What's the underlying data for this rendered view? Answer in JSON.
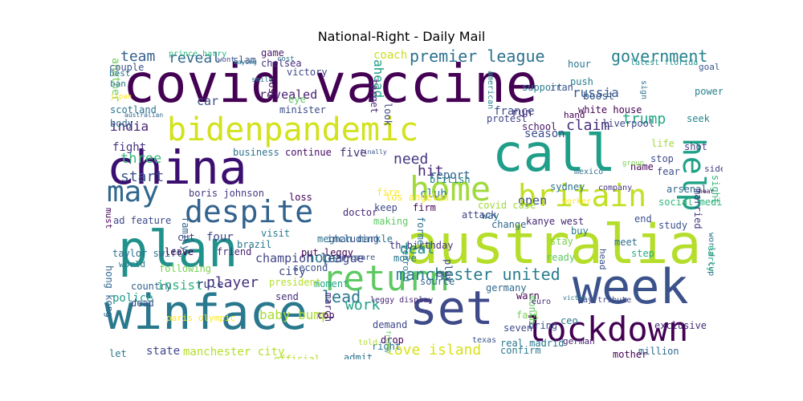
{
  "title": "National-Right - Daily Mail",
  "words": [
    {
      "text": "covid vaccine",
      "color": "#440154"
    },
    {
      "text": "china",
      "color": "#3b0f70"
    },
    {
      "text": "winface",
      "color": "#2a788e"
    },
    {
      "text": "plan",
      "color": "#21918c"
    },
    {
      "text": "australia",
      "color": "#b5de2b"
    },
    {
      "text": "set",
      "color": "#3e4a89"
    },
    {
      "text": "week",
      "color": "#3b528b"
    },
    {
      "text": "call",
      "color": "#1f9e89"
    },
    {
      "text": "bidenpandemic",
      "color": "#d2e21b"
    },
    {
      "text": "home",
      "color": "#a0da39"
    },
    {
      "text": "britain",
      "color": "#c2df23"
    },
    {
      "text": "despite",
      "color": "#33638d"
    },
    {
      "text": "may",
      "color": "#30678d"
    },
    {
      "text": "lockdown",
      "color": "#440154"
    },
    {
      "text": "return",
      "color": "#5ec962"
    },
    {
      "text": "help",
      "color": "#1fa187"
    },
    {
      "text": "manchester united",
      "color": "#287d8e"
    },
    {
      "text": "premier league",
      "color": "#2c728e"
    },
    {
      "text": "government",
      "color": "#26828e"
    },
    {
      "text": "reveal",
      "color": "#31688e"
    },
    {
      "text": "team",
      "color": "#355f8d"
    },
    {
      "text": "india",
      "color": "#482475"
    },
    {
      "text": "claim",
      "color": "#472d7b"
    },
    {
      "text": "trump",
      "color": "#22a884"
    },
    {
      "text": "three",
      "color": "#35b779"
    },
    {
      "text": "start",
      "color": "#3b528b"
    },
    {
      "text": "need",
      "color": "#453781"
    },
    {
      "text": "hit",
      "color": "#482878"
    },
    {
      "text": "player",
      "color": "#46327e"
    },
    {
      "text": "hope",
      "color": "#287c8e"
    },
    {
      "text": "lead",
      "color": "#2a768e"
    },
    {
      "text": "work",
      "color": "#20a386"
    },
    {
      "text": "love island",
      "color": "#d8e219"
    },
    {
      "text": "deal",
      "color": "#21908d"
    },
    {
      "text": "champion league",
      "color": "#414487"
    },
    {
      "text": "four",
      "color": "#404688"
    },
    {
      "text": "boris johnson",
      "color": "#443983"
    },
    {
      "text": "fight",
      "color": "#46337f"
    },
    {
      "text": "insist",
      "color": "#2db27d"
    },
    {
      "text": "rule",
      "color": "#404387"
    },
    {
      "text": "police",
      "color": "#1e9b8a"
    },
    {
      "text": "paris olympic",
      "color": "#fde725"
    },
    {
      "text": "baby bump",
      "color": "#a8db34"
    },
    {
      "text": "city",
      "color": "#3f4889"
    },
    {
      "text": "revealed",
      "color": "#482071"
    },
    {
      "text": "minister",
      "color": "#3d4d8a"
    },
    {
      "text": "business",
      "color": "#2c738e"
    },
    {
      "text": "continue",
      "color": "#440a68"
    },
    {
      "text": "five",
      "color": "#472f7d"
    },
    {
      "text": "club",
      "color": "#2a788e"
    },
    {
      "text": "report",
      "color": "#34618d"
    },
    {
      "text": "open",
      "color": "#3c4f8a"
    },
    {
      "text": "british",
      "color": "#25838e"
    },
    {
      "text": "season",
      "color": "#3e4c8a"
    },
    {
      "text": "school",
      "color": "#471164"
    },
    {
      "text": "run",
      "color": "#482173"
    },
    {
      "text": "russia",
      "color": "#365c8d"
    },
    {
      "text": "boost",
      "color": "#39568c"
    },
    {
      "text": "ahead",
      "color": "#1f9f88"
    },
    {
      "text": "coach",
      "color": "#c8e020"
    },
    {
      "text": "game",
      "color": "#481a6c"
    },
    {
      "text": "chelsea",
      "color": "#46307e"
    },
    {
      "text": "slam",
      "color": "#3a548c"
    },
    {
      "text": "wont",
      "color": "#3f4788"
    },
    {
      "text": "prince harry",
      "color": "#2fb47c"
    },
    {
      "text": "another",
      "color": "#6ece58"
    },
    {
      "text": "car",
      "color": "#3c4f8a"
    },
    {
      "text": "hour",
      "color": "#2b758e"
    },
    {
      "text": "push",
      "color": "#287d8e"
    },
    {
      "text": "support",
      "color": "#277f8e"
    },
    {
      "text": "iran",
      "color": "#3b528b"
    },
    {
      "text": "latest florida",
      "color": "#21908d"
    },
    {
      "text": "goal",
      "color": "#39568c"
    },
    {
      "text": "power",
      "color": "#26828e"
    },
    {
      "text": "seek",
      "color": "#24868e"
    },
    {
      "text": "liverpool",
      "color": "#3f4889"
    },
    {
      "text": "life",
      "color": "#9fda3a"
    },
    {
      "text": "shot",
      "color": "#433e85"
    },
    {
      "text": "stop",
      "color": "#3e4c8a"
    },
    {
      "text": "name",
      "color": "#450559"
    },
    {
      "text": "side",
      "color": "#424086"
    },
    {
      "text": "fear",
      "color": "#3d4e8a"
    },
    {
      "text": "arsenal",
      "color": "#31688e"
    },
    {
      "text": "sight",
      "color": "#35b779"
    },
    {
      "text": "married",
      "color": "#453882"
    },
    {
      "text": "social medium",
      "color": "#31b57b"
    },
    {
      "text": "end",
      "color": "#3b518b"
    },
    {
      "text": "study",
      "color": "#3a538b"
    },
    {
      "text": "meet",
      "color": "#2d708e"
    },
    {
      "text": "step",
      "color": "#27ad81"
    },
    {
      "text": "world cup",
      "color": "#2c738e"
    },
    {
      "text": "early",
      "color": "#2ab07f"
    },
    {
      "text": "exclusive",
      "color": "#472c7a"
    },
    {
      "text": "ready",
      "color": "#5cc863"
    },
    {
      "text": "stay",
      "color": "#7ad151"
    },
    {
      "text": "head",
      "color": "#3b528b"
    },
    {
      "text": "kanye west",
      "color": "#482677"
    },
    {
      "text": "buy",
      "color": "#2a788e"
    },
    {
      "text": "sydney",
      "color": "#2c728e"
    },
    {
      "text": "company",
      "color": "#46337f"
    },
    {
      "text": "mexico",
      "color": "#2e6f8e"
    },
    {
      "text": "white house",
      "color": "#440154"
    },
    {
      "text": "hand",
      "color": "#440154"
    },
    {
      "text": "france",
      "color": "#3d4e8a"
    },
    {
      "text": "protest",
      "color": "#414487"
    },
    {
      "text": "american",
      "color": "#25858e"
    },
    {
      "text": "look",
      "color": "#3f4889"
    },
    {
      "text": "target",
      "color": "#472c7a"
    },
    {
      "text": "eye",
      "color": "#5ec962"
    },
    {
      "text": "host",
      "color": "#440154"
    },
    {
      "text": "victory",
      "color": "#3e4989"
    },
    {
      "text": "ban",
      "color": "#2a768e"
    },
    {
      "text": "japan",
      "color": "#fde725"
    },
    {
      "text": "scotland",
      "color": "#2c728e"
    },
    {
      "text": "body",
      "color": "#32648e"
    },
    {
      "text": "must",
      "color": "#440154"
    },
    {
      "text": "hong kong",
      "color": "#31688e"
    },
    {
      "text": "taylor swift",
      "color": "#2d708e"
    },
    {
      "text": "world",
      "color": "#2a788e"
    },
    {
      "text": "ad feature",
      "color": "#3e4989"
    },
    {
      "text": "country",
      "color": "#33638d"
    },
    {
      "text": "dead",
      "color": "#3b528b"
    },
    {
      "text": "cut",
      "color": "#453882"
    },
    {
      "text": "leave",
      "color": "#440154"
    },
    {
      "text": "brazil",
      "color": "#2a788e"
    },
    {
      "text": "friend",
      "color": "#482475"
    },
    {
      "text": "put leggy",
      "color": "#440154"
    },
    {
      "text": "meghan markle",
      "color": "#2c728e"
    },
    {
      "text": "including",
      "color": "#3b528b"
    },
    {
      "text": "fire",
      "color": "#fde725"
    },
    {
      "text": "keep",
      "color": "#3e4989"
    },
    {
      "text": "making",
      "color": "#5ec962"
    },
    {
      "text": "firm",
      "color": "#440154"
    },
    {
      "text": "way",
      "color": "#2a788e"
    },
    {
      "text": "covid case",
      "color": "#a0da39"
    },
    {
      "text": "change",
      "color": "#31688e"
    },
    {
      "text": "attack",
      "color": "#414487"
    },
    {
      "text": "los angeles",
      "color": "#fde725"
    },
    {
      "text": "doctor",
      "color": "#482878"
    },
    {
      "text": "loss",
      "color": "#440154"
    },
    {
      "text": "visit",
      "color": "#2a788e"
    },
    {
      "text": "family",
      "color": "#31688e"
    },
    {
      "text": "following",
      "color": "#7ad151"
    },
    {
      "text": "second",
      "color": "#3b528b"
    },
    {
      "text": "moment",
      "color": "#22a884"
    },
    {
      "text": "president",
      "color": "#b5de2b"
    },
    {
      "text": "send",
      "color": "#472c7a"
    },
    {
      "text": "prepare",
      "color": "#3b528b"
    },
    {
      "text": "cop",
      "color": "#440154"
    },
    {
      "text": "move",
      "color": "#2a788e"
    },
    {
      "text": "source",
      "color": "#31688e"
    },
    {
      "text": "demand",
      "color": "#3e4989"
    },
    {
      "text": "drop",
      "color": "#440154"
    },
    {
      "text": "right",
      "color": "#2c728e"
    },
    {
      "text": "th birthday",
      "color": "#46327e"
    },
    {
      "text": "leggy display",
      "color": "#482878"
    },
    {
      "text": "yearold",
      "color": "#2a788e"
    },
    {
      "text": "former",
      "color": "#2c728e"
    },
    {
      "text": "play",
      "color": "#3e4989"
    },
    {
      "text": "eu",
      "color": "#414487"
    },
    {
      "text": "germany",
      "color": "#31688e"
    },
    {
      "text": "warn",
      "color": "#440154"
    },
    {
      "text": "fail",
      "color": "#7ad151"
    },
    {
      "text": "bring",
      "color": "#3b528b"
    },
    {
      "text": "month",
      "color": "#5ec962"
    },
    {
      "text": "seven",
      "color": "#3e4989"
    },
    {
      "text": "ceo",
      "color": "#2a788e"
    },
    {
      "text": "euro",
      "color": "#472c7a"
    },
    {
      "text": "german",
      "color": "#482475"
    },
    {
      "text": "real madrid",
      "color": "#2a788e"
    },
    {
      "text": "texas",
      "color": "#3b528b"
    },
    {
      "text": "confirm",
      "color": "#2a788e"
    },
    {
      "text": "mother",
      "color": "#440154"
    },
    {
      "text": "million",
      "color": "#31688e"
    },
    {
      "text": "admit",
      "color": "#2c728e"
    },
    {
      "text": "official",
      "color": "#b5de2b"
    },
    {
      "text": "state",
      "color": "#3e4989"
    },
    {
      "text": "manchester city",
      "color": "#b5de2b"
    },
    {
      "text": "let",
      "color": "#2a788e"
    },
    {
      "text": "march",
      "color": "#482878"
    },
    {
      "text": "told",
      "color": "#b5de2b"
    },
    {
      "text": "australian",
      "color": "#31688e"
    },
    {
      "text": "best",
      "color": "#2c728e"
    },
    {
      "text": "couple",
      "color": "#3b528b"
    },
    {
      "text": "saying",
      "color": "#2a788e"
    },
    {
      "text": "sign",
      "color": "#2c728e"
    },
    {
      "text": "group",
      "color": "#7ad151"
    },
    {
      "text": "near",
      "color": "#440154"
    },
    {
      "text": "worker",
      "color": "#fde725"
    },
    {
      "text": "victim",
      "color": "#2a788e"
    },
    {
      "text": "pay tribute",
      "color": "#3e4989"
    },
    {
      "text": "french",
      "color": "#5ec962"
    },
    {
      "text": "smile",
      "color": "#2a788e"
    },
    {
      "text": "finally",
      "color": "#3b528b"
    },
    {
      "text": "cost",
      "color": "#2c728e"
    }
  ]
}
